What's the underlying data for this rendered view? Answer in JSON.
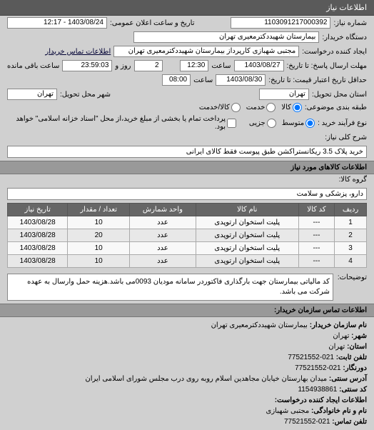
{
  "header": {
    "title": "اطلاعات نیاز"
  },
  "form": {
    "ref_label": "شماره نیاز:",
    "ref_value": "1103091217000392",
    "announce_label": "تاریخ و ساعت اعلان عمومی:",
    "announce_value": "1403/08/24 - 12:17",
    "buyer_label": "دستگاه خریدار:",
    "buyer_value": "بیمارستان شهیددکترمعیری تهران",
    "requester_label": "ایجاد کننده درخواست:",
    "requester_value": "مجتبی  شهبازی کارپرداز بیمارستان شهیددکترمعیری تهران",
    "contact_link": "اطلاعات تماس خریدار",
    "deadline_send_label": "مهلت ارسال پاسخ: تا تاریخ:",
    "deadline_send_date": "1403/08/27",
    "time_label": "ساعت",
    "deadline_send_time": "12:30",
    "remain_days": "2",
    "remain_days_label": "روز و",
    "remain_time": "23:59:03",
    "remain_label": "ساعت باقی مانده",
    "deadline_consider_label": "حداقل تاریخ اعتبار قیمت: تا تاریخ:",
    "deadline_consider_date": "1403/08/30",
    "deadline_consider_time": "08:00",
    "delivery_place_label": "استان محل تحویل:",
    "delivery_place_value": "تهران",
    "delivery_city_label": "شهر محل تحویل:",
    "delivery_city_value": "تهران",
    "group_type_label": "طبقه بندی موضوعی:",
    "group_opts": [
      "کالا",
      "خدمت",
      "کالا/خدمت"
    ],
    "group_selected": 0,
    "process_label": "نوع فرآیند خرید :",
    "process_opts": [
      "متوسط",
      "جزیی"
    ],
    "process_selected": 0,
    "pay_check_label": "پرداخت تمام یا بخشی از مبلغ خرید،از محل \"اسناد خزانه اسلامی\" خواهد بود.",
    "desc_title_label": "شرح کلی نیاز:",
    "desc_title_value": "خرید پلاک 3.5 ریکانستراکشن طبق پیوست فقط کالای ایرانی"
  },
  "goods_section": {
    "title": "اطلاعات کالاهای مورد نیاز",
    "group_label": "گروه کالا:",
    "group_value": "دارو، پزشکی و سلامت"
  },
  "table": {
    "headers": [
      "ردیف",
      "کد کالا",
      "نام کالا",
      "واحد شمارش",
      "تعداد / مقدار",
      "تاریخ نیاز"
    ],
    "rows": [
      [
        "1",
        "---",
        "پلیت استخوان ارتوپدی",
        "عدد",
        "10",
        "1403/08/28"
      ],
      [
        "2",
        "---",
        "پلیت استخوان ارتوپدی",
        "عدد",
        "20",
        "1403/08/28"
      ],
      [
        "3",
        "---",
        "پلیت استخوان ارتوپدی",
        "عدد",
        "10",
        "1403/08/28"
      ],
      [
        "4",
        "---",
        "پلیت استخوان ارتوپدی",
        "عدد",
        "10",
        "1403/08/28"
      ]
    ]
  },
  "notes": {
    "label": "توضیحات:",
    "text": "کد مالیاتی بیمارستان جهت بارگذاری فاکتوردر سامانه مودیان 0093می باشد.هزینه حمل وارسال به عهده شرکت می باشد."
  },
  "contact_info": {
    "section_title": "اطلاعات تماس سازمان خریدار:",
    "org_label": "نام سازمان خریدار:",
    "org_value": "بیمارستان شهیددکترمعیری تهران",
    "city_label": "شهر:",
    "city_value": "تهران",
    "province_label": "استان:",
    "province_value": "تهران",
    "phone_label": "تلفن ثابت:",
    "phone_value": "021-77521552",
    "fax_label": "دورنگار:",
    "fax_value": "021-77521552",
    "address_label": "آدرس سنتی:",
    "address_value": "میدان بهارستان خیابان مجاهدین اسلام روبه روی درب مجلس شورای اسلامی ایران",
    "postal_label": "کد سنتی:",
    "postal_value": "1154938861",
    "requester_section": "اطلاعات ایجاد کننده درخواست:",
    "requester_name_label": "نام و نام خانوادگی:",
    "requester_name_value": "مجتبی  شهبازی",
    "requester_phone_label": "تلفن تماس:",
    "requester_phone_value": "021-77521552"
  }
}
